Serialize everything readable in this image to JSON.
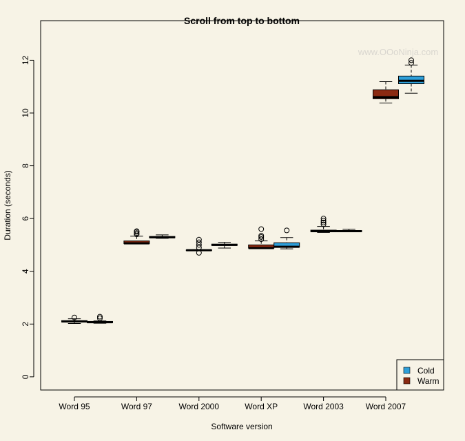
{
  "chart_data": {
    "type": "boxplot",
    "title": "Scroll from top to bottom",
    "xlabel": "Software version",
    "ylabel": "Duration (seconds)",
    "watermark": "www.OOoNinja.com",
    "ylim": [
      -0.5,
      13.5
    ],
    "yticks": [
      0,
      2,
      4,
      6,
      8,
      10,
      12
    ],
    "categories": [
      "Word 95",
      "Word 97",
      "Word 2000",
      "Word XP",
      "Word 2003",
      "Word 2007"
    ],
    "legend": {
      "position": "bottom-right",
      "entries": [
        {
          "name": "Cold",
          "color": "#2e9fd9"
        },
        {
          "name": "Warm",
          "color": "#8b2a12"
        }
      ]
    },
    "series": [
      {
        "name": "Warm",
        "color": "#8b2a12",
        "boxes": [
          {
            "low": 2.02,
            "q1": 2.08,
            "median": 2.1,
            "q3": 2.13,
            "high": 2.2,
            "outliers": [
              2.25
            ]
          },
          {
            "low": 5.05,
            "q1": 5.05,
            "median": 5.06,
            "q3": 5.15,
            "high": 5.33,
            "outliers": [
              5.4,
              5.45,
              5.5,
              5.52
            ]
          },
          {
            "low": 4.78,
            "q1": 4.79,
            "median": 4.8,
            "q3": 4.81,
            "high": 4.82,
            "outliers": [
              4.7,
              4.9,
              5.0,
              5.1,
              5.2
            ]
          },
          {
            "low": 4.87,
            "q1": 4.88,
            "median": 4.88,
            "q3": 5.0,
            "high": 5.15,
            "outliers": [
              5.22,
              5.3,
              5.35,
              5.6
            ]
          },
          {
            "low": 5.47,
            "q1": 5.5,
            "median": 5.52,
            "q3": 5.56,
            "high": 5.7,
            "outliers": [
              5.78,
              5.85,
              5.92,
              6.0
            ]
          },
          {
            "low": 10.38,
            "q1": 10.54,
            "median": 10.6,
            "q3": 10.88,
            "high": 11.19,
            "outliers": []
          }
        ]
      },
      {
        "name": "Cold",
        "color": "#2e9fd9",
        "boxes": [
          {
            "low": 2.03,
            "q1": 2.05,
            "median": 2.07,
            "q3": 2.1,
            "high": 2.12,
            "outliers": [
              2.22,
              2.28
            ]
          },
          {
            "low": 5.25,
            "q1": 5.27,
            "median": 5.29,
            "q3": 5.32,
            "high": 5.38,
            "outliers": []
          },
          {
            "low": 4.88,
            "q1": 4.98,
            "median": 5.0,
            "q3": 5.03,
            "high": 5.1,
            "outliers": []
          },
          {
            "low": 4.85,
            "q1": 4.92,
            "median": 4.93,
            "q3": 5.08,
            "high": 5.28,
            "outliers": [
              5.55
            ]
          },
          {
            "low": 5.5,
            "q1": 5.51,
            "median": 5.52,
            "q3": 5.54,
            "high": 5.6,
            "outliers": []
          },
          {
            "low": 10.75,
            "q1": 11.11,
            "median": 11.22,
            "q3": 11.4,
            "high": 11.82,
            "outliers": [
              11.9,
              12.0
            ]
          }
        ]
      }
    ]
  }
}
